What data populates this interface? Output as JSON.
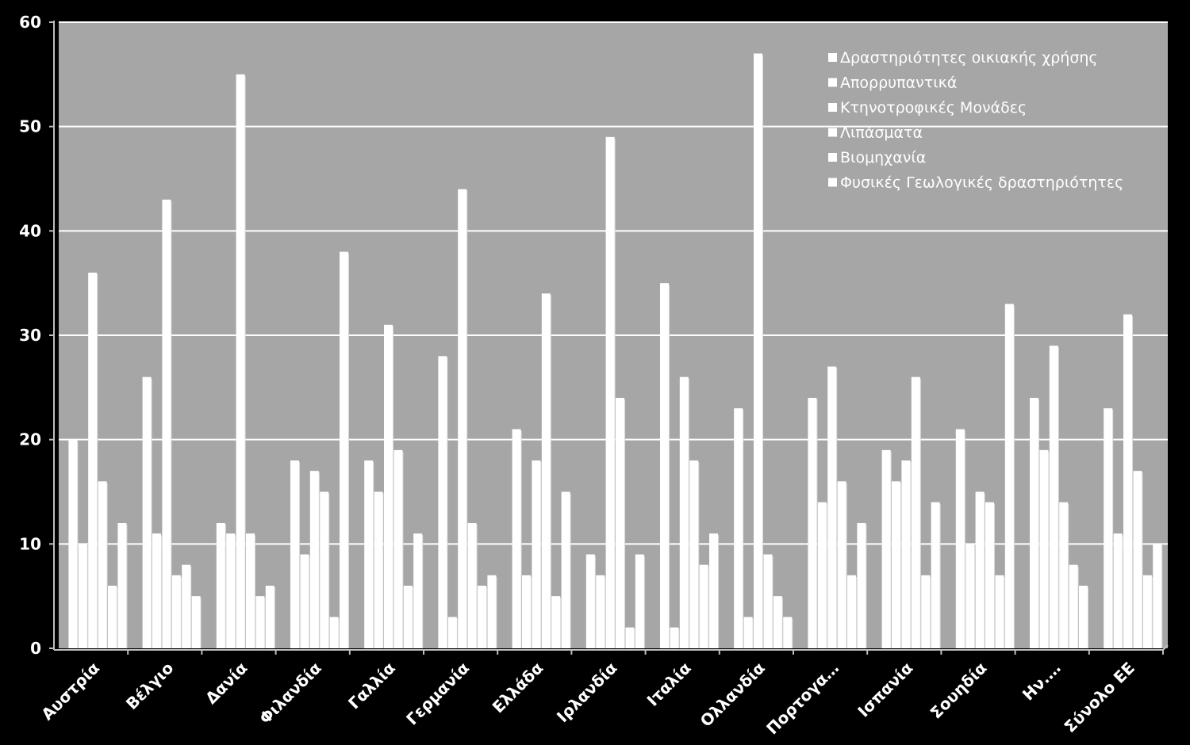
{
  "chart_data": {
    "type": "bar",
    "categories": [
      "Αυστρία",
      "Βέλγιο",
      "Δανία",
      "Φιλανδία",
      "Γαλλία",
      "Γερμανία",
      "Ελλάδα",
      "Ιρλανδία",
      "Ιταλία",
      "Ολλανδία",
      "Πορτογα…",
      "Ισπανία",
      "Σουηδία",
      "Ην.…",
      "Σύνολο ΕΕ"
    ],
    "series": [
      {
        "name": "Δραστηριότητες οικιακής χρήσης",
        "values": [
          20,
          26,
          12,
          18,
          18,
          28,
          21,
          9,
          35,
          23,
          24,
          19,
          21,
          24,
          23
        ]
      },
      {
        "name": "Απορρυπαντικά",
        "values": [
          10,
          11,
          11,
          9,
          15,
          3,
          7,
          7,
          2,
          3,
          14,
          16,
          10,
          19,
          11
        ]
      },
      {
        "name": "Κτηνοτροφικές Μονάδες",
        "values": [
          36,
          43,
          55,
          17,
          31,
          44,
          18,
          49,
          26,
          57,
          27,
          18,
          15,
          29,
          32
        ]
      },
      {
        "name": "Λιπάσματα",
        "values": [
          16,
          7,
          11,
          15,
          19,
          12,
          34,
          24,
          18,
          9,
          16,
          26,
          14,
          14,
          17
        ]
      },
      {
        "name": "Βιομηχανία",
        "values": [
          6,
          8,
          5,
          3,
          6,
          6,
          5,
          2,
          8,
          5,
          7,
          7,
          7,
          8,
          7
        ]
      },
      {
        "name": "Φυσικές Γεωλογικές δραστηριότητες",
        "values": [
          12,
          5,
          6,
          38,
          11,
          7,
          15,
          9,
          11,
          3,
          12,
          14,
          33,
          6,
          10
        ]
      }
    ],
    "ylim": [
      0,
      60
    ],
    "yticks": [
      0,
      10,
      20,
      30,
      40,
      50,
      60
    ],
    "grid": true,
    "legend_position": "top-right",
    "colors": {
      "background": "#000000",
      "plot_area": "#a6a6a6",
      "gridline": "#ffffff",
      "bar": "#ffffff",
      "text": "#ffffff"
    }
  }
}
